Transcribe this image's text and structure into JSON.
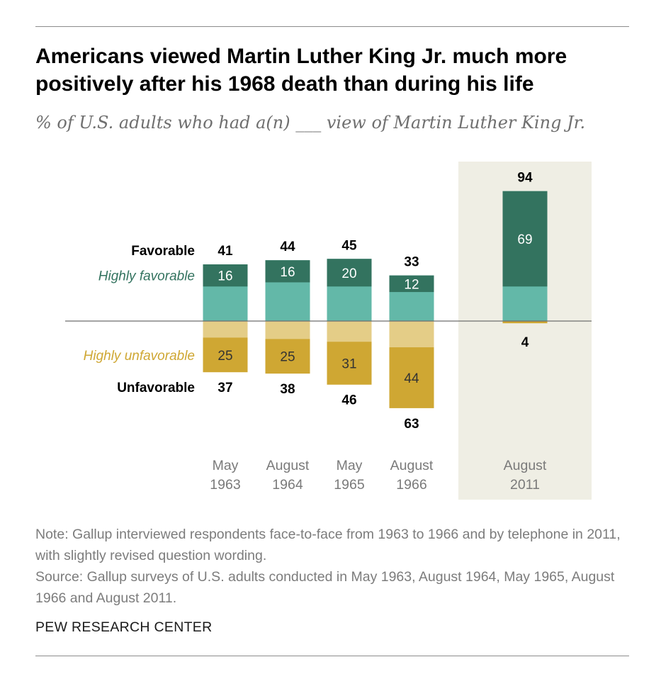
{
  "header": {
    "title": "Americans viewed Martin Luther King Jr. much more positively after his 1968 death than during his life",
    "subtitle": "% of U.S. adults who had a(n) ___ view of Martin Luther King Jr."
  },
  "chart_data": {
    "type": "bar",
    "stacked": true,
    "diverging": true,
    "categories": [
      {
        "line1": "May",
        "line2": "1963"
      },
      {
        "line1": "August",
        "line2": "1964"
      },
      {
        "line1": "May",
        "line2": "1965"
      },
      {
        "line1": "August",
        "line2": "1966"
      },
      {
        "line1": "August",
        "line2": "2011"
      }
    ],
    "highlighted_category_index": 4,
    "series": [
      {
        "name": "Favorable",
        "values": [
          41,
          44,
          45,
          33,
          94
        ]
      },
      {
        "name": "Highly favorable",
        "values": [
          16,
          16,
          20,
          12,
          69
        ]
      },
      {
        "name": "Unfavorable",
        "values": [
          37,
          38,
          46,
          63,
          4
        ]
      },
      {
        "name": "Highly unfavorable",
        "values": [
          25,
          25,
          31,
          44,
          null
        ]
      }
    ],
    "legend": {
      "favorable": "Favorable",
      "highly_favorable": "Highly favorable",
      "highly_unfavorable": "Highly unfavorable",
      "unfavorable": "Unfavorable"
    },
    "colors": {
      "highly_favorable": "#33735f",
      "favorable_rest": "#63b8a8",
      "highly_unfavorable": "#cfa733",
      "unfavorable_rest": "#e4cd87",
      "highlight_bg": "#efeee4",
      "baseline": "#6e6e6e"
    }
  },
  "footer": {
    "note": "Note: Gallup interviewed respondents face-to-face from 1963 to 1966 and by telephone in 2011, with slightly revised question wording.",
    "source": "Source: Gallup surveys of U.S. adults conducted in May 1963, August 1964, May 1965, August 1966 and August 2011.",
    "brand": "PEW RESEARCH CENTER"
  }
}
